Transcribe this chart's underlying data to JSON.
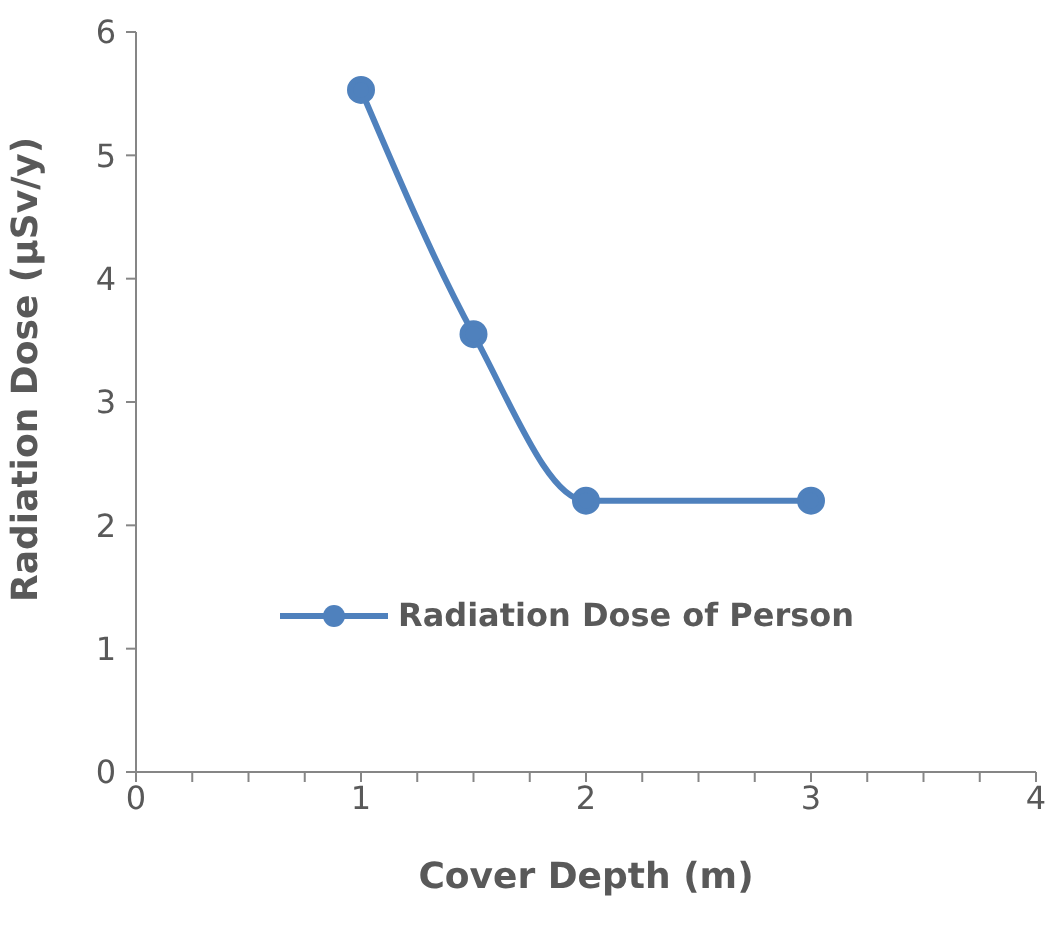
{
  "chart_data": {
    "type": "line",
    "xlabel": "Cover Depth (m)",
    "ylabel": "Radiation Dose (μSv/y)",
    "x": [
      1,
      1.5,
      2,
      3
    ],
    "series": [
      {
        "name": "Radiation Dose of Person",
        "color": "#4f81bd",
        "values": [
          5.53,
          3.55,
          2.2,
          2.2
        ]
      }
    ],
    "xlim": [
      0,
      4
    ],
    "xticks": [
      0,
      {
        "value": 0.25,
        "label": null
      },
      {
        "value": 0.5,
        "label": null
      },
      {
        "value": 0.75,
        "label": null
      },
      1,
      {
        "value": 1.25,
        "label": null
      },
      {
        "value": 1.5,
        "label": null
      },
      {
        "value": 1.75,
        "label": null
      },
      2,
      {
        "value": 2.25,
        "label": null
      },
      {
        "value": 2.5,
        "label": null
      },
      {
        "value": 2.75,
        "label": null
      },
      3,
      {
        "value": 3.25,
        "label": null
      },
      {
        "value": 3.5,
        "label": null
      },
      {
        "value": 3.75,
        "label": null
      },
      4
    ],
    "ylim": [
      0,
      6
    ],
    "yticks": [
      0,
      1,
      2,
      3,
      4,
      5,
      6
    ],
    "grid": false,
    "legend": "left",
    "marker": "circle",
    "line_style": "solid"
  }
}
